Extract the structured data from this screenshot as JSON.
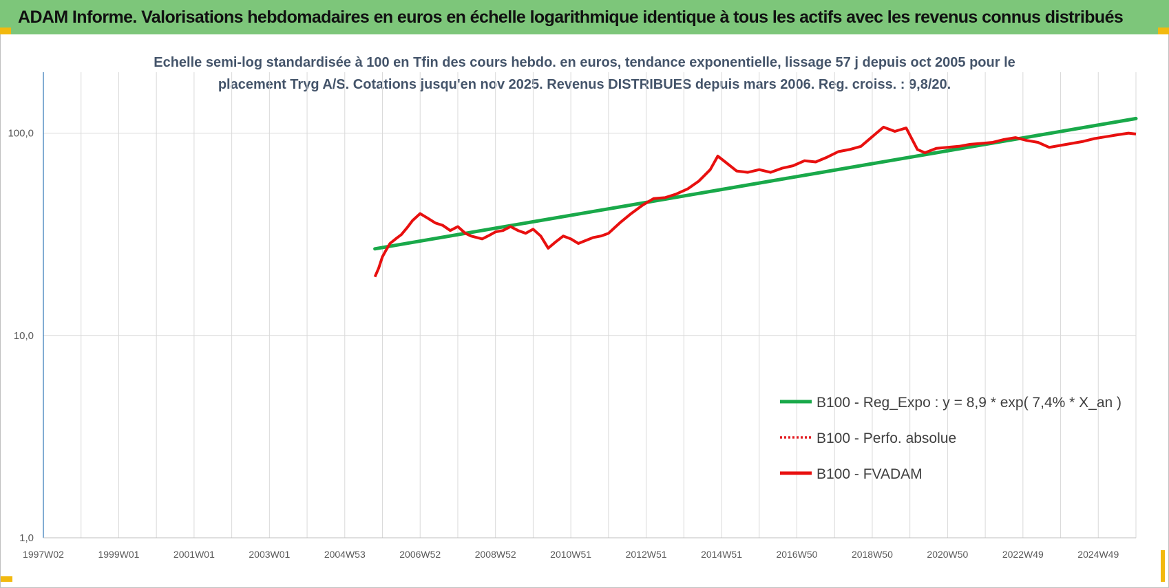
{
  "header": {
    "title": "ADAM Informe. Valorisations hebdomadaires en euros en échelle logarithmique identique à tous les actifs avec les revenus connus distribués"
  },
  "colors": {
    "banner": "#7dc67a",
    "accent": "#f2b90f",
    "trend": "#19a94a",
    "perf": "#e31e24",
    "fvadam": "#e8100f",
    "grid": "#d9d9d9",
    "axis": "#2e75b6"
  },
  "chart_data": {
    "type": "line",
    "title": "",
    "subtitle_lines": [
      "Echelle semi-log standardisée à 100 en Tfin des cours hebdo. en euros, tendance exponentielle, lissage 57 j depuis oct 2005 pour le",
      "placement Tryg A/S. Cotations jusqu'en nov 2025. Revenus DISTRIBUES depuis mars 2006.  Reg. croiss. : 9,8/20."
    ],
    "xlabel": "",
    "ylabel": "",
    "y_scale": "log",
    "ylim": [
      1,
      200
    ],
    "y_ticks": [
      {
        "value": 1,
        "label": "1,0"
      },
      {
        "value": 10,
        "label": "10,0"
      },
      {
        "value": 100,
        "label": "100,0"
      }
    ],
    "x_range": [
      1997.0,
      2026.0
    ],
    "x_ticks": [
      {
        "value": 1997.0,
        "label": "1997W02"
      },
      {
        "value": 1999.0,
        "label": "1999W01"
      },
      {
        "value": 2001.0,
        "label": "2001W01"
      },
      {
        "value": 2003.0,
        "label": "2003W01"
      },
      {
        "value": 2005.0,
        "label": "2004W53"
      },
      {
        "value": 2007.0,
        "label": "2006W52"
      },
      {
        "value": 2009.0,
        "label": "2008W52"
      },
      {
        "value": 2011.0,
        "label": "2010W51"
      },
      {
        "value": 2013.0,
        "label": "2012W51"
      },
      {
        "value": 2015.0,
        "label": "2014W51"
      },
      {
        "value": 2017.0,
        "label": "2016W50"
      },
      {
        "value": 2019.0,
        "label": "2018W50"
      },
      {
        "value": 2021.0,
        "label": "2020W50"
      },
      {
        "value": 2023.0,
        "label": "2022W49"
      },
      {
        "value": 2025.0,
        "label": "2024W49"
      }
    ],
    "grid": true,
    "legend_position": "bottom-right",
    "series": [
      {
        "name": "B100 - Reg_Expo : y = 8,9 * exp( 7,4% *  X_an )",
        "style": "solid",
        "color": "#19a94a",
        "x": [
          2005.8,
          2026.0
        ],
        "y": [
          26.8,
          118.0
        ]
      },
      {
        "name": "B100 - Perfo. absolue",
        "style": "dotted",
        "color": "#e31e24",
        "x": [
          2005.8,
          2005.9,
          2006.0,
          2006.1,
          2006.2,
          2006.35,
          2006.5,
          2006.65,
          2006.8,
          2007.0,
          2007.2,
          2007.4,
          2007.6,
          2007.8,
          2008.0,
          2008.2,
          2008.35,
          2008.5,
          2008.65,
          2008.8,
          2009.0,
          2009.2,
          2009.4,
          2009.6,
          2009.8,
          2010.0,
          2010.2,
          2010.4,
          2010.6,
          2010.8,
          2011.0,
          2011.2,
          2011.4,
          2011.6,
          2011.8,
          2012.0,
          2012.3,
          2012.6,
          2012.9,
          2013.2,
          2013.5,
          2013.8,
          2014.1,
          2014.4,
          2014.7,
          2014.9,
          2015.1,
          2015.4,
          2015.7,
          2016.0,
          2016.3,
          2016.6,
          2016.9,
          2017.2,
          2017.5,
          2017.8,
          2018.1,
          2018.4,
          2018.7,
          2019.0,
          2019.3,
          2019.6,
          2019.9,
          2020.2,
          2020.4,
          2020.55,
          2020.7,
          2021.0,
          2021.3,
          2021.6,
          2021.9,
          2022.2,
          2022.5,
          2022.8,
          2023.1,
          2023.4,
          2023.7,
          2024.0,
          2024.3,
          2024.6,
          2024.9,
          2025.2,
          2025.5,
          2025.8,
          2026.0
        ],
        "y": [
          19.5,
          21.5,
          24.5,
          26.5,
          28.5,
          30,
          31.5,
          34,
          37,
          40,
          38,
          36,
          35,
          33,
          34.5,
          32,
          31,
          30.5,
          30,
          31,
          32.5,
          33,
          34.5,
          33,
          32,
          33.5,
          31,
          27,
          29,
          31,
          30,
          28.5,
          29.5,
          30.5,
          31,
          32,
          36,
          40,
          44,
          47.5,
          48,
          50,
          53,
          58,
          66,
          77,
          72,
          65,
          64,
          66,
          64,
          67,
          69,
          73,
          72,
          76,
          81,
          83,
          86,
          96,
          107,
          102,
          106,
          83,
          80,
          82,
          84,
          85,
          86,
          88,
          89,
          90,
          93,
          95,
          92,
          90,
          85,
          87,
          89,
          91,
          94,
          96,
          98,
          100,
          99
        ]
      },
      {
        "name": "B100 - FVADAM",
        "style": "solid",
        "color": "#e8100f",
        "x": [
          2005.8,
          2005.9,
          2006.0,
          2006.1,
          2006.2,
          2006.35,
          2006.5,
          2006.65,
          2006.8,
          2007.0,
          2007.2,
          2007.4,
          2007.6,
          2007.8,
          2008.0,
          2008.2,
          2008.35,
          2008.5,
          2008.65,
          2008.8,
          2009.0,
          2009.2,
          2009.4,
          2009.6,
          2009.8,
          2010.0,
          2010.2,
          2010.4,
          2010.6,
          2010.8,
          2011.0,
          2011.2,
          2011.4,
          2011.6,
          2011.8,
          2012.0,
          2012.3,
          2012.6,
          2012.9,
          2013.2,
          2013.5,
          2013.8,
          2014.1,
          2014.4,
          2014.7,
          2014.9,
          2015.1,
          2015.4,
          2015.7,
          2016.0,
          2016.3,
          2016.6,
          2016.9,
          2017.2,
          2017.5,
          2017.8,
          2018.1,
          2018.4,
          2018.7,
          2019.0,
          2019.3,
          2019.6,
          2019.9,
          2020.2,
          2020.4,
          2020.55,
          2020.7,
          2021.0,
          2021.3,
          2021.6,
          2021.9,
          2022.2,
          2022.5,
          2022.8,
          2023.1,
          2023.4,
          2023.7,
          2024.0,
          2024.3,
          2024.6,
          2024.9,
          2025.2,
          2025.5,
          2025.8,
          2026.0
        ],
        "y": [
          19.5,
          21.5,
          24.5,
          26.5,
          28.5,
          30,
          31.5,
          34,
          37,
          40,
          38,
          36,
          35,
          33,
          34.5,
          32,
          31,
          30.5,
          30,
          31,
          32.5,
          33,
          34.5,
          33,
          32,
          33.5,
          31,
          27,
          29,
          31,
          30,
          28.5,
          29.5,
          30.5,
          31,
          32,
          36,
          40,
          44,
          47.5,
          48,
          50,
          53,
          58,
          66,
          77,
          72,
          65,
          64,
          66,
          64,
          67,
          69,
          73,
          72,
          76,
          81,
          83,
          86,
          96,
          107,
          102,
          106,
          83,
          80,
          82,
          84,
          85,
          86,
          88,
          89,
          90,
          93,
          95,
          92,
          90,
          85,
          87,
          89,
          91,
          94,
          96,
          98,
          100,
          99
        ]
      }
    ]
  }
}
